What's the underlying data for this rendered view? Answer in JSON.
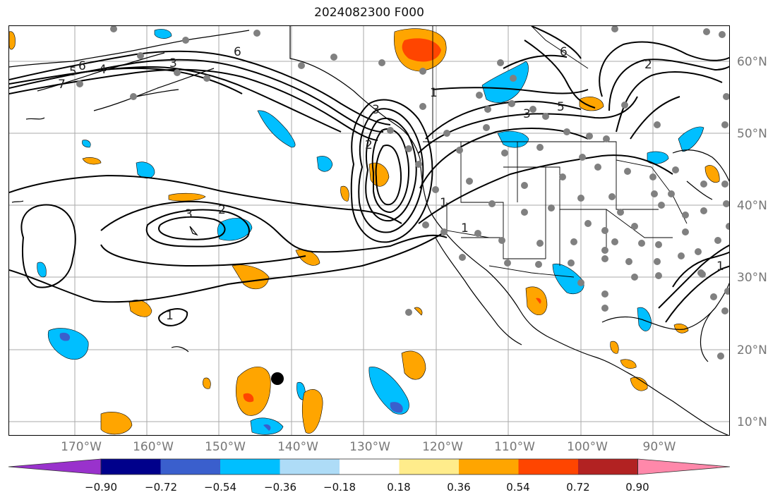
{
  "title": "2024082300 F000",
  "lon_labels": [
    "170°W",
    "160°W",
    "150°W",
    "140°W",
    "130°W",
    "120°W",
    "110°W",
    "100°W",
    "90°W"
  ],
  "lat_labels": [
    "60°N",
    "50°N",
    "40°N",
    "30°N",
    "20°N",
    "10°N"
  ],
  "contour_labels": [
    "5",
    "6",
    "4",
    "7",
    "3",
    "6",
    "3",
    "2",
    "1",
    "1",
    "3",
    "5",
    "6",
    "2",
    "1",
    "3",
    "2",
    "1",
    "1"
  ],
  "colorbar": {
    "tick_labels": [
      "−0.90",
      "−0.72",
      "−0.54",
      "−0.36",
      "−0.18",
      "0.18",
      "0.36",
      "0.54",
      "0.72",
      "0.90"
    ],
    "colors": [
      "#9932cc",
      "#00008b",
      "#3a5fcd",
      "#00bfff",
      "#aedcf7",
      "#ffffff",
      "#ffec8b",
      "#ffa500",
      "#ff4500",
      "#b22222",
      "#ff88aa"
    ]
  }
}
